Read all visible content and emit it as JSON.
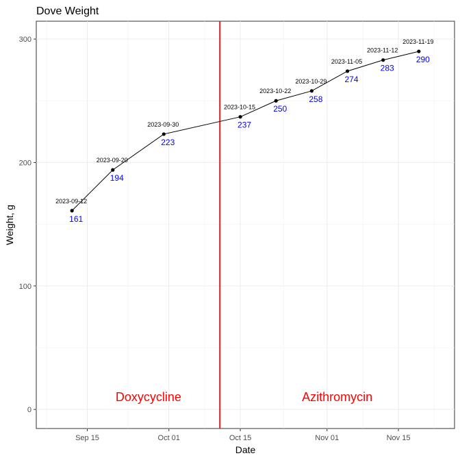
{
  "colors": {
    "line": "#000000",
    "point": "#000000",
    "value_label": "#0000ff",
    "vline": "#e31a1c",
    "annotation": "#ff0000",
    "grid_major": "#ebebeb",
    "grid_minor": "#f2f2f2"
  },
  "chart_data": {
    "type": "line",
    "title": "Dove Weight",
    "xlabel": "Date",
    "ylabel": "Weight, g",
    "ylim": [
      0,
      300
    ],
    "xlim": [
      "2023-09-05",
      "2023-11-26"
    ],
    "y_ticks": [
      0,
      100,
      200,
      300
    ],
    "x_ticks": [
      {
        "date": "2023-09-15",
        "label": "Sep 15"
      },
      {
        "date": "2023-10-01",
        "label": "Oct 01"
      },
      {
        "date": "2023-10-15",
        "label": "Oct 15"
      },
      {
        "date": "2023-11-01",
        "label": "Nov 01"
      },
      {
        "date": "2023-11-15",
        "label": "Nov 15"
      }
    ],
    "grid": true,
    "points": [
      {
        "date": "2023-09-12",
        "weight": 161
      },
      {
        "date": "2023-09-20",
        "weight": 194
      },
      {
        "date": "2023-09-30",
        "weight": 223
      },
      {
        "date": "2023-10-15",
        "weight": 237
      },
      {
        "date": "2023-10-22",
        "weight": 250
      },
      {
        "date": "2023-10-29",
        "weight": 258
      },
      {
        "date": "2023-11-05",
        "weight": 274
      },
      {
        "date": "2023-11-12",
        "weight": 283
      },
      {
        "date": "2023-11-19",
        "weight": 290
      }
    ],
    "vertical_line": {
      "date": "2023-10-11"
    },
    "annotations": [
      {
        "text": "Doxycycline",
        "date": "2023-09-27",
        "weight": 10
      },
      {
        "text": "Azithromycin",
        "date": "2023-11-03",
        "weight": 10
      }
    ]
  }
}
